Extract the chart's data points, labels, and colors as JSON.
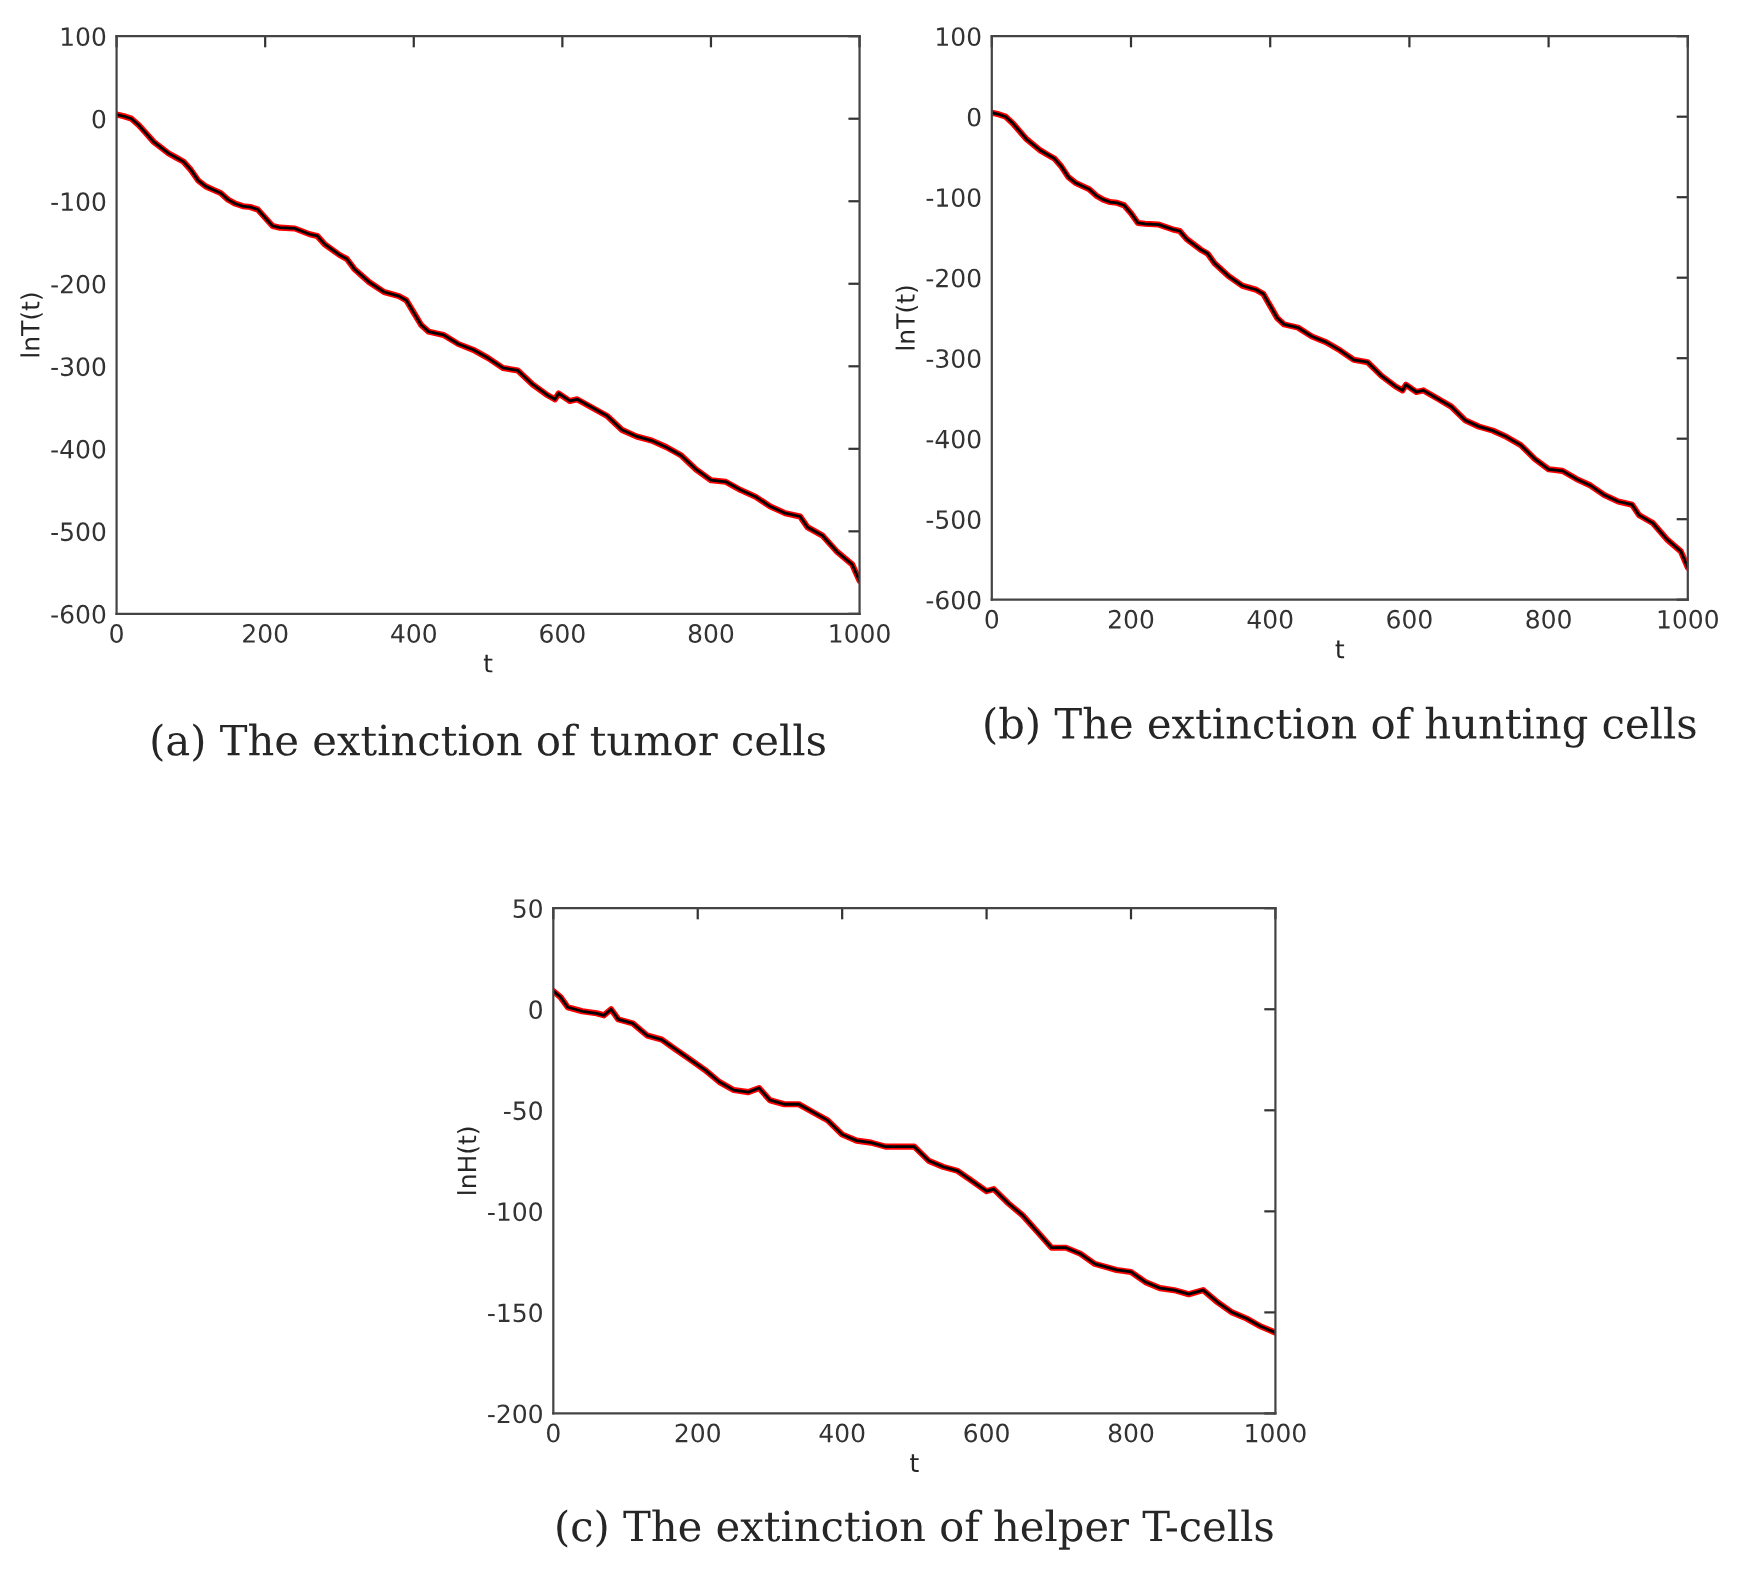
{
  "chart_data": [
    {
      "type": "line",
      "title": "(a) The extinction of tumor cells",
      "xlabel": "t",
      "ylabel": "lnT(t)",
      "xlim": [
        0,
        1000
      ],
      "xticks": [
        0,
        200,
        400,
        600,
        800,
        1000
      ],
      "ylim": [
        -600,
        100
      ],
      "yticks": [
        -600,
        -500,
        -400,
        -300,
        -200,
        -100,
        0,
        100
      ],
      "grid": false,
      "legend": false,
      "x": [
        0,
        10,
        20,
        30,
        40,
        50,
        60,
        70,
        80,
        90,
        100,
        110,
        120,
        130,
        140,
        150,
        160,
        170,
        180,
        190,
        200,
        210,
        220,
        240,
        260,
        270,
        280,
        300,
        310,
        320,
        340,
        360,
        380,
        390,
        400,
        410,
        420,
        440,
        460,
        480,
        500,
        520,
        540,
        560,
        580,
        590,
        595,
        610,
        620,
        640,
        660,
        680,
        700,
        720,
        740,
        760,
        780,
        800,
        820,
        840,
        860,
        880,
        900,
        920,
        930,
        950,
        970,
        990,
        1000
      ],
      "series": [
        {
          "color": "#ff0000",
          "values": [
            5,
            3,
            0,
            -8,
            -18,
            -28,
            -35,
            -42,
            -47,
            -52,
            -62,
            -75,
            -82,
            -86,
            -90,
            -98,
            -103,
            -106,
            -107,
            -110,
            -120,
            -130,
            -132,
            -133,
            -140,
            -142,
            -152,
            -165,
            -170,
            -182,
            -198,
            -210,
            -215,
            -220,
            -235,
            -250,
            -258,
            -262,
            -273,
            -280,
            -290,
            -302,
            -305,
            -322,
            -335,
            -340,
            -333,
            -342,
            -340,
            -350,
            -360,
            -377,
            -385,
            -390,
            -398,
            -408,
            -425,
            -438,
            -440,
            -450,
            -458,
            -470,
            -478,
            -482,
            -495,
            -505,
            -525,
            -540,
            -560
          ]
        },
        {
          "color": "#000000",
          "values": [
            5,
            3,
            0,
            -8,
            -18,
            -28,
            -35,
            -42,
            -47,
            -52,
            -62,
            -75,
            -82,
            -86,
            -90,
            -98,
            -103,
            -106,
            -107,
            -110,
            -120,
            -130,
            -132,
            -133,
            -140,
            -142,
            -152,
            -165,
            -170,
            -182,
            -198,
            -210,
            -215,
            -220,
            -235,
            -250,
            -258,
            -262,
            -273,
            -280,
            -290,
            -302,
            -305,
            -322,
            -335,
            -340,
            -333,
            -342,
            -340,
            -350,
            -360,
            -377,
            -385,
            -390,
            -398,
            -408,
            -425,
            -438,
            -440,
            -450,
            -458,
            -470,
            -478,
            -482,
            -495,
            -505,
            -525,
            -540,
            -560
          ]
        }
      ]
    },
    {
      "type": "line",
      "title": "(b) The extinction of hunting cells",
      "xlabel": "t",
      "ylabel": "lnT(t)",
      "xlim": [
        0,
        1000
      ],
      "xticks": [
        0,
        200,
        400,
        600,
        800,
        1000
      ],
      "ylim": [
        -600,
        100
      ],
      "yticks": [
        -600,
        -500,
        -400,
        -300,
        -200,
        -100,
        0,
        100
      ],
      "grid": false,
      "legend": false,
      "x": [
        0,
        10,
        20,
        30,
        40,
        50,
        60,
        70,
        80,
        90,
        100,
        110,
        120,
        130,
        140,
        150,
        160,
        170,
        180,
        190,
        200,
        210,
        220,
        240,
        260,
        270,
        280,
        300,
        310,
        320,
        340,
        360,
        380,
        390,
        400,
        410,
        420,
        440,
        460,
        480,
        500,
        520,
        540,
        560,
        580,
        590,
        595,
        610,
        620,
        640,
        660,
        680,
        700,
        720,
        740,
        760,
        780,
        800,
        820,
        840,
        860,
        880,
        900,
        920,
        930,
        950,
        970,
        990,
        1000
      ],
      "series": [
        {
          "color": "#ff0000",
          "values": [
            5,
            3,
            0,
            -8,
            -18,
            -28,
            -35,
            -42,
            -47,
            -52,
            -62,
            -75,
            -82,
            -86,
            -90,
            -98,
            -103,
            -106,
            -107,
            -110,
            -120,
            -132,
            -133,
            -134,
            -140,
            -142,
            -152,
            -165,
            -170,
            -182,
            -198,
            -210,
            -215,
            -220,
            -235,
            -250,
            -258,
            -262,
            -273,
            -280,
            -290,
            -302,
            -305,
            -322,
            -335,
            -340,
            -333,
            -342,
            -340,
            -350,
            -360,
            -377,
            -385,
            -390,
            -398,
            -408,
            -425,
            -438,
            -440,
            -450,
            -458,
            -470,
            -478,
            -482,
            -495,
            -505,
            -525,
            -540,
            -560
          ]
        },
        {
          "color": "#000000",
          "values": [
            5,
            3,
            0,
            -8,
            -18,
            -28,
            -35,
            -42,
            -47,
            -52,
            -62,
            -75,
            -82,
            -86,
            -90,
            -98,
            -103,
            -106,
            -107,
            -110,
            -120,
            -132,
            -133,
            -134,
            -140,
            -142,
            -152,
            -165,
            -170,
            -182,
            -198,
            -210,
            -215,
            -220,
            -235,
            -250,
            -258,
            -262,
            -273,
            -280,
            -290,
            -302,
            -305,
            -322,
            -335,
            -340,
            -333,
            -342,
            -340,
            -350,
            -360,
            -377,
            -385,
            -390,
            -398,
            -408,
            -425,
            -438,
            -440,
            -450,
            -458,
            -470,
            -478,
            -482,
            -495,
            -505,
            -525,
            -540,
            -560
          ]
        }
      ]
    },
    {
      "type": "line",
      "title": "(c) The extinction of helper T-cells",
      "xlabel": "t",
      "ylabel": "lnH(t)",
      "xlim": [
        0,
        1000
      ],
      "xticks": [
        0,
        200,
        400,
        600,
        800,
        1000
      ],
      "ylim": [
        -200,
        50
      ],
      "yticks": [
        -200,
        -150,
        -100,
        -50,
        0,
        50
      ],
      "grid": false,
      "legend": false,
      "x": [
        0,
        10,
        20,
        40,
        60,
        70,
        80,
        90,
        110,
        130,
        150,
        170,
        190,
        210,
        230,
        250,
        270,
        285,
        300,
        320,
        340,
        360,
        380,
        400,
        420,
        440,
        460,
        480,
        500,
        520,
        540,
        560,
        580,
        600,
        610,
        630,
        650,
        670,
        690,
        710,
        730,
        750,
        780,
        800,
        820,
        840,
        860,
        880,
        900,
        920,
        940,
        960,
        980,
        1000
      ],
      "series": [
        {
          "color": "#ff0000",
          "values": [
            9,
            6,
            1,
            -1,
            -2,
            -3,
            0,
            -5,
            -7,
            -13,
            -15,
            -20,
            -25,
            -30,
            -36,
            -40,
            -41,
            -39,
            -45,
            -47,
            -47,
            -51,
            -55,
            -62,
            -65,
            -66,
            -68,
            -68,
            -68,
            -75,
            -78,
            -80,
            -85,
            -90,
            -89,
            -96,
            -102,
            -110,
            -118,
            -118,
            -121,
            -126,
            -129,
            -130,
            -135,
            -138,
            -139,
            -141,
            -139,
            -145,
            -150,
            -153,
            -157,
            -160
          ]
        },
        {
          "color": "#000000",
          "values": [
            9,
            6,
            1,
            -1,
            -2,
            -3,
            0,
            -5,
            -7,
            -13,
            -15,
            -20,
            -25,
            -30,
            -36,
            -40,
            -41,
            -39,
            -45,
            -47,
            -47,
            -51,
            -55,
            -62,
            -65,
            -66,
            -68,
            -68,
            -68,
            -75,
            -78,
            -80,
            -85,
            -90,
            -89,
            -96,
            -102,
            -110,
            -118,
            -118,
            -121,
            -126,
            -129,
            -130,
            -135,
            -138,
            -139,
            -141,
            -139,
            -145,
            -150,
            -153,
            -157,
            -160
          ]
        }
      ]
    }
  ]
}
